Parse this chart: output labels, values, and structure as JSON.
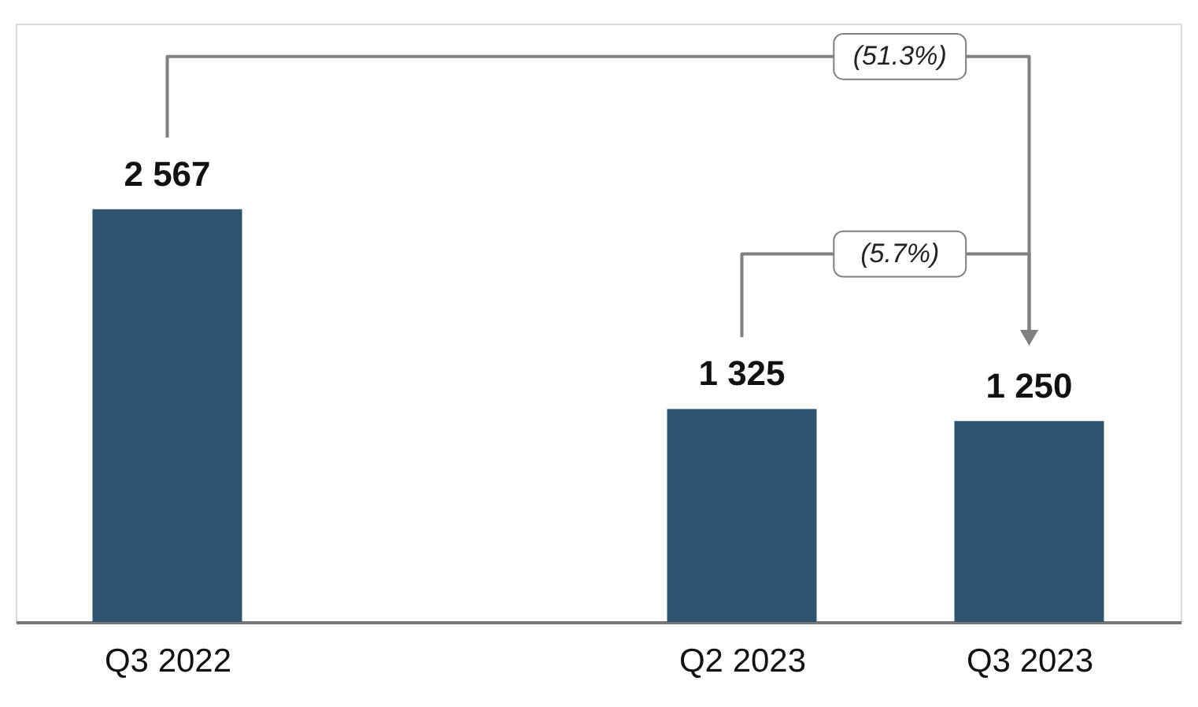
{
  "chart_data": {
    "type": "bar",
    "categories": [
      "Q3 2022",
      null,
      "Q2 2023",
      "Q3 2023"
    ],
    "values": [
      2567,
      null,
      1325,
      1250
    ],
    "color": "#2e5470",
    "data_labels": true,
    "value_labels": [
      "2 567",
      null,
      "1 325",
      "1 250"
    ],
    "annotations": [
      "(51.3%)",
      "(5.7%)"
    ],
    "grid": false
  }
}
